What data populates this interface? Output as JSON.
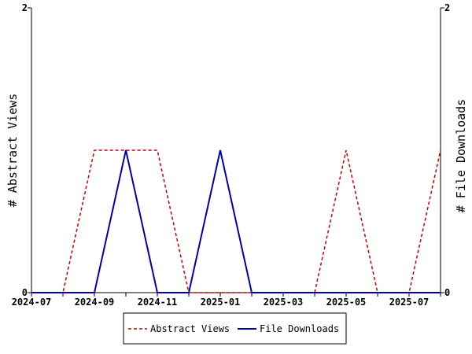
{
  "chart_data": {
    "type": "line",
    "title": "",
    "x_ticks": [
      "2024-07",
      "2024-09",
      "2024-11",
      "2025-01",
      "2025-03",
      "2025-05",
      "2025-07"
    ],
    "x": [
      "2024-07",
      "2024-08",
      "2024-09",
      "2024-10",
      "2024-11",
      "2024-12",
      "2025-01",
      "2025-02",
      "2025-03",
      "2025-04",
      "2025-05",
      "2025-06",
      "2025-07",
      "2025-08"
    ],
    "left_axis": {
      "label": "# Abstract Views",
      "ylim": [
        0,
        2
      ],
      "tick_labels": [
        "0",
        "2"
      ]
    },
    "right_axis": {
      "label": "# File Downloads",
      "ylim": [
        0,
        2
      ],
      "tick_labels": [
        "0",
        "2"
      ]
    },
    "series": [
      {
        "name": "Abstract Views",
        "axis": "left",
        "color": "#cc0000",
        "style": "dashed",
        "values": [
          0,
          0,
          1,
          1,
          1,
          0,
          0,
          0,
          0,
          0,
          1,
          0,
          0,
          1
        ]
      },
      {
        "name": "File Downloads",
        "axis": "right",
        "color": "#0000aa",
        "style": "solid",
        "values": [
          0,
          0,
          0,
          1,
          0,
          0,
          1,
          0,
          0,
          0,
          0,
          0,
          0,
          0
        ]
      }
    ],
    "grid": false,
    "legend_position": "bottom"
  }
}
